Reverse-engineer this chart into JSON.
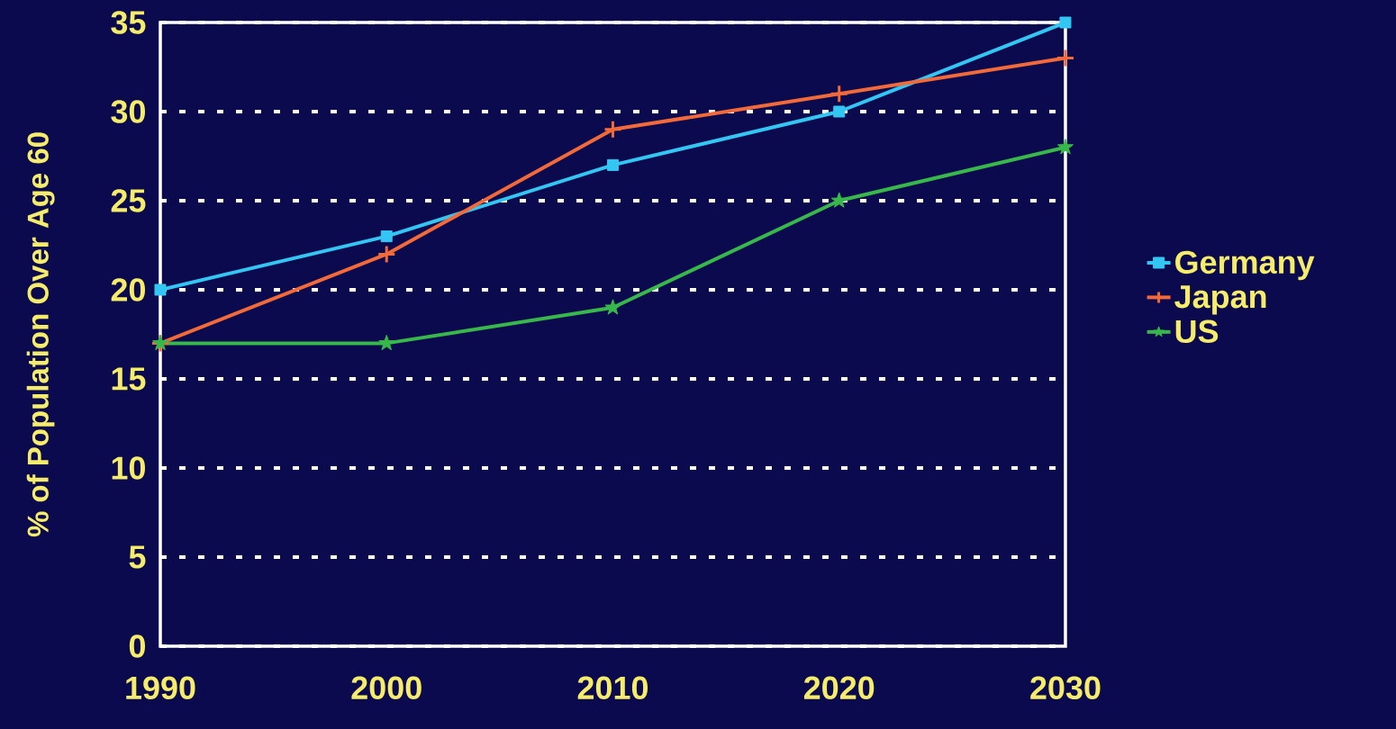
{
  "chart_data": {
    "type": "line",
    "ylabel": "% of Population Over Age 60",
    "x": [
      1990,
      2000,
      2010,
      2020,
      2030
    ],
    "series": [
      {
        "name": "Germany",
        "color": "#33c6f2",
        "marker": "square",
        "values": [
          20,
          23,
          27,
          30,
          35
        ]
      },
      {
        "name": "Japan",
        "color": "#f26a3a",
        "marker": "cross",
        "values": [
          17,
          22,
          29,
          31,
          33
        ]
      },
      {
        "name": "US",
        "color": "#38b84a",
        "marker": "star",
        "values": [
          17,
          17,
          19,
          25,
          28
        ]
      }
    ],
    "xlim": [
      1990,
      2030
    ],
    "xticks": [
      1990,
      2000,
      2010,
      2020,
      2030
    ],
    "ylim": [
      0,
      35
    ],
    "yticks": [
      0,
      5,
      10,
      15,
      20,
      25,
      30,
      35
    ],
    "grid": "y",
    "legend": "right",
    "line_style": "solid"
  }
}
